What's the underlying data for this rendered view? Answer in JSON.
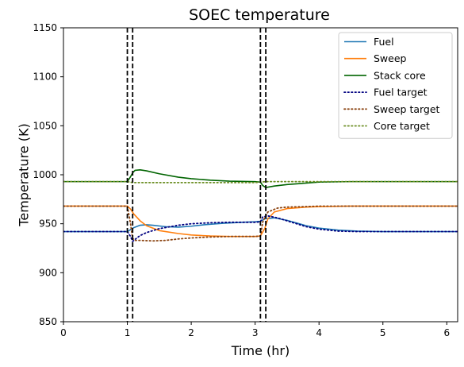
{
  "chart_data": {
    "type": "line",
    "title": "SOEC temperature",
    "xlabel": "Time (hr)",
    "ylabel": "Temperature (K)",
    "xlim": [
      0,
      6.17
    ],
    "ylim": [
      850,
      1150
    ],
    "xticks": [
      0,
      1,
      2,
      3,
      4,
      5,
      6
    ],
    "yticks": [
      850,
      900,
      950,
      1000,
      1050,
      1100,
      1150
    ],
    "grid": false,
    "legend_position": "top-right",
    "vertical_lines": [
      1.0,
      1.083,
      3.083,
      3.167
    ],
    "series": [
      {
        "name": "Fuel",
        "color": "#1f77b4",
        "style": "solid",
        "x": [
          0,
          1.0,
          1.05,
          1.1,
          1.2,
          1.3,
          1.4,
          1.6,
          1.8,
          2.0,
          2.2,
          2.5,
          2.8,
          3.0,
          3.083,
          3.15,
          3.3,
          3.5,
          3.8,
          4.0,
          4.3,
          4.6,
          5.0,
          5.5,
          6.17
        ],
        "y": [
          942,
          942,
          944,
          946,
          948.5,
          949,
          948.5,
          947,
          946.5,
          947.5,
          949,
          950.5,
          951.5,
          952,
          952.5,
          955,
          956,
          953.5,
          948,
          945.5,
          943.5,
          942.5,
          942,
          942,
          942
        ]
      },
      {
        "name": "Sweep",
        "color": "#ff7f0e",
        "style": "solid",
        "x": [
          0,
          1.0,
          1.05,
          1.1,
          1.2,
          1.3,
          1.5,
          1.8,
          2.0,
          2.3,
          2.6,
          3.0,
          3.083,
          3.15,
          3.2,
          3.3,
          3.5,
          3.8,
          4.0,
          4.5,
          5.0,
          6.17
        ],
        "y": [
          968,
          968,
          965,
          960,
          953,
          948,
          943,
          940,
          938.5,
          937.5,
          937,
          937,
          937.5,
          945,
          955,
          962,
          965.5,
          967,
          967.5,
          968,
          968,
          968
        ]
      },
      {
        "name": "Stack core",
        "color": "#006400",
        "style": "solid",
        "x": [
          0,
          1.0,
          1.05,
          1.083,
          1.12,
          1.2,
          1.3,
          1.5,
          1.8,
          2.0,
          2.3,
          2.6,
          3.0,
          3.083,
          3.12,
          3.167,
          3.3,
          3.5,
          3.8,
          4.0,
          4.5,
          5.0,
          6.17
        ],
        "y": [
          993,
          993,
          998,
          1002,
          1004.5,
          1005,
          1004,
          1001,
          997.5,
          996,
          994.5,
          993.5,
          993,
          992.5,
          989,
          987,
          988.5,
          990,
          991.5,
          992.5,
          993,
          993,
          993
        ]
      },
      {
        "name": "Fuel target",
        "color": "#000080",
        "style": "dotted",
        "x": [
          0,
          1.0,
          1.05,
          1.083,
          1.12,
          1.2,
          1.3,
          1.5,
          1.8,
          2.0,
          2.3,
          2.6,
          3.0,
          3.083,
          3.12,
          3.2,
          3.35,
          3.5,
          3.8,
          4.0,
          4.3,
          4.6,
          5.0,
          6.17
        ],
        "y": [
          942,
          942,
          937,
          932,
          934,
          938,
          941,
          945,
          948.5,
          950,
          951,
          951.5,
          951.5,
          952,
          957,
          958,
          956,
          953,
          947,
          944.5,
          942.5,
          942,
          942,
          942
        ]
      },
      {
        "name": "Sweep target",
        "color": "#8b4513",
        "style": "dotted",
        "x": [
          0,
          1.0,
          1.05,
          1.083,
          1.12,
          1.2,
          1.4,
          1.6,
          1.8,
          2.0,
          2.3,
          2.6,
          3.0,
          3.083,
          3.12,
          3.2,
          3.35,
          3.5,
          3.8,
          4.0,
          4.5,
          5.0,
          6.17
        ],
        "y": [
          968,
          968,
          950,
          935,
          933,
          933,
          932.5,
          933,
          934.5,
          935.5,
          936.5,
          937,
          937,
          937.5,
          952,
          962,
          966,
          967,
          967.5,
          968,
          968,
          968,
          968
        ]
      },
      {
        "name": "Core target",
        "color": "#6b8e23",
        "style": "dotted",
        "x": [
          0,
          1.0,
          1.083,
          1.3,
          2.0,
          3.0,
          3.083,
          3.167,
          4.0,
          5.0,
          6.17
        ],
        "y": [
          993,
          993,
          992,
          992,
          992,
          992,
          992.5,
          993,
          993,
          993,
          993
        ]
      }
    ]
  }
}
